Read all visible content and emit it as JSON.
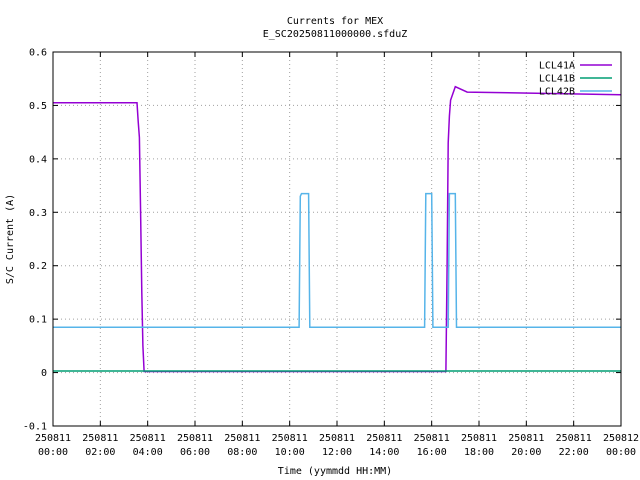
{
  "chart_data": {
    "type": "line",
    "title": "Currents for MEX",
    "subtitle": "E_SC20250811000000.sfduZ",
    "xlabel": "Time (yymmdd HH:MM)",
    "ylabel": "S/C Current (A)",
    "xlim": [
      0,
      24
    ],
    "ylim": [
      -0.1,
      0.6
    ],
    "grid": true,
    "legend_position": "top-right",
    "x_ticks": [
      {
        "value": 0,
        "date": "250811",
        "time": "00:00"
      },
      {
        "value": 2,
        "date": "250811",
        "time": "02:00"
      },
      {
        "value": 4,
        "date": "250811",
        "time": "04:00"
      },
      {
        "value": 6,
        "date": "250811",
        "time": "06:00"
      },
      {
        "value": 8,
        "date": "250811",
        "time": "08:00"
      },
      {
        "value": 10,
        "date": "250811",
        "time": "10:00"
      },
      {
        "value": 12,
        "date": "250811",
        "time": "12:00"
      },
      {
        "value": 14,
        "date": "250811",
        "time": "14:00"
      },
      {
        "value": 16,
        "date": "250811",
        "time": "16:00"
      },
      {
        "value": 18,
        "date": "250811",
        "time": "18:00"
      },
      {
        "value": 20,
        "date": "250811",
        "time": "20:00"
      },
      {
        "value": 22,
        "date": "250811",
        "time": "22:00"
      },
      {
        "value": 24,
        "date": "250812",
        "time": "00:00"
      }
    ],
    "y_ticks": [
      {
        "value": -0.1,
        "label": "-0.1"
      },
      {
        "value": 0,
        "label": "0"
      },
      {
        "value": 0.1,
        "label": "0.1"
      },
      {
        "value": 0.2,
        "label": "0.2"
      },
      {
        "value": 0.3,
        "label": "0.3"
      },
      {
        "value": 0.4,
        "label": "0.4"
      },
      {
        "value": 0.5,
        "label": "0.5"
      },
      {
        "value": 0.6,
        "label": "0.6"
      }
    ],
    "series": [
      {
        "name": "LCL41A",
        "color": "#9400d3",
        "x": [
          0,
          3.55,
          3.6,
          3.65,
          3.7,
          3.75,
          3.8,
          3.85,
          16.6,
          16.65,
          16.7,
          16.75,
          16.8,
          17.0,
          17.5,
          24
        ],
        "y": [
          0.505,
          0.505,
          0.47,
          0.44,
          0.3,
          0.15,
          0.05,
          0.002,
          0.002,
          0.2,
          0.43,
          0.48,
          0.51,
          0.535,
          0.525,
          0.52
        ]
      },
      {
        "name": "LCL41B",
        "color": "#009e73",
        "x": [
          0,
          24
        ],
        "y": [
          0.003,
          0.003
        ]
      },
      {
        "name": "LCL42B",
        "color": "#56b4e9",
        "x": [
          0,
          10.4,
          10.45,
          10.5,
          10.8,
          10.85,
          15.7,
          15.75,
          16.0,
          16.05,
          16.7,
          16.75,
          17.0,
          17.05,
          24
        ],
        "y": [
          0.085,
          0.085,
          0.33,
          0.335,
          0.335,
          0.085,
          0.085,
          0.335,
          0.335,
          0.085,
          0.085,
          0.335,
          0.335,
          0.085,
          0.085
        ]
      }
    ]
  }
}
